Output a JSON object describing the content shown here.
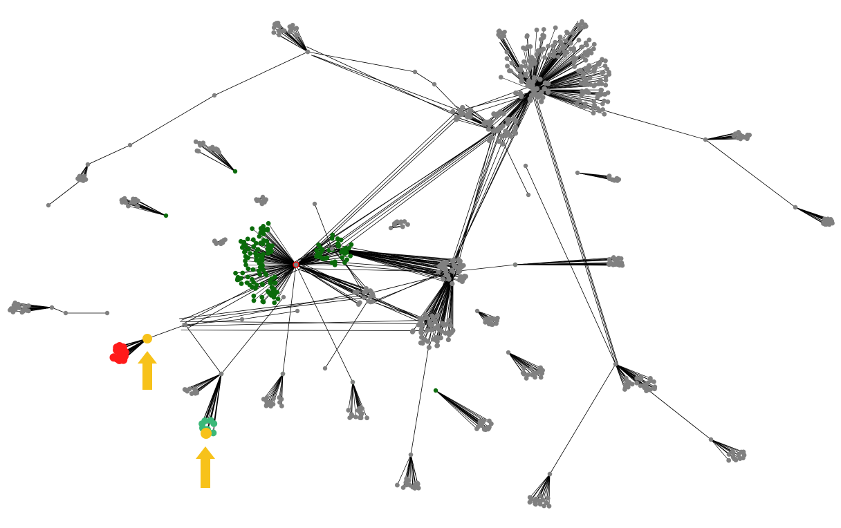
{
  "colors": {
    "background": "#ffffff",
    "edge": "#000000",
    "default_node": "#808080",
    "highlight_cluster": "#0b6b0b",
    "hub_node": "#ff0000",
    "selected_cluster_red": "#ff1a1a",
    "selected_cluster_teal": "#3cb878",
    "marker_node": "#f7c21a",
    "arrow": "#f7c21a"
  },
  "legend_text": null,
  "annotations": {
    "arrow_icons": [
      "up-arrow-icon",
      "up-arrow-icon"
    ]
  }
}
